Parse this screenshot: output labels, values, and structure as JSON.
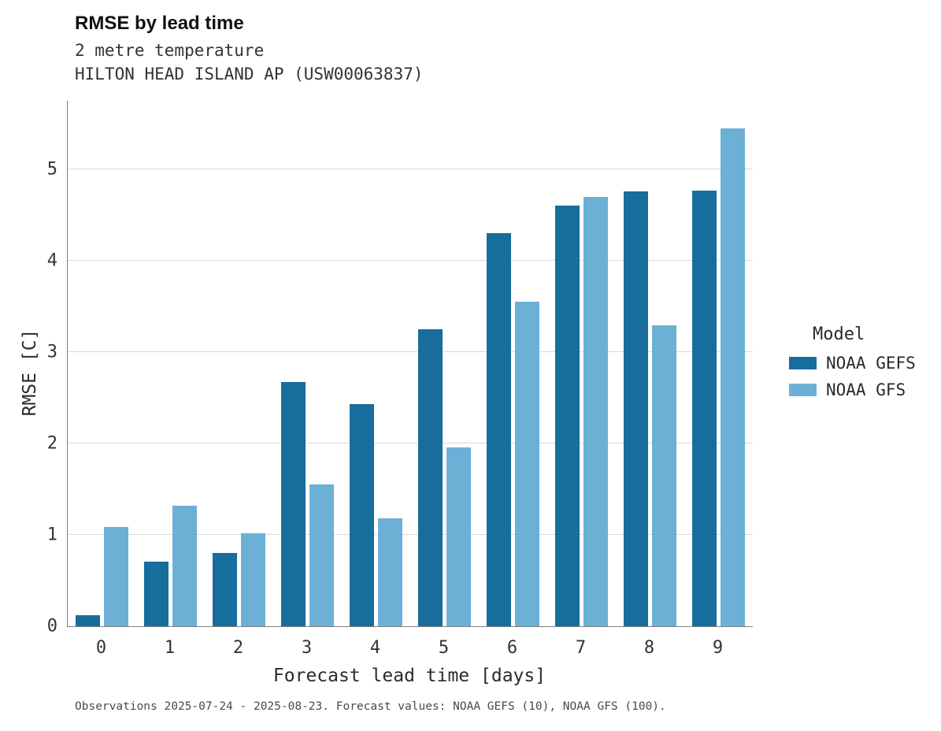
{
  "title": "RMSE by lead time",
  "subtitle_variable": "2 metre temperature",
  "subtitle_station": "HILTON HEAD ISLAND AP (USW00063837)",
  "footer": "Observations 2025-07-24 - 2025-08-23. Forecast values: NOAA GEFS (10), NOAA GFS (100).",
  "legend": {
    "title": "Model",
    "entries": [
      {
        "label": "NOAA GEFS",
        "color": "#176d9b"
      },
      {
        "label": "NOAA GFS",
        "color": "#6cb0d6"
      }
    ]
  },
  "colors": {
    "gefs": "#176d9b",
    "gfs": "#6cb0d6",
    "grid": "#d9d9d9",
    "spine": "#808080"
  },
  "chart_data": {
    "type": "bar",
    "title": "RMSE by lead time",
    "subtitle": "2 metre temperature — HILTON HEAD ISLAND AP (USW00063837)",
    "categories": [
      0,
      1,
      2,
      3,
      4,
      5,
      6,
      7,
      8,
      9
    ],
    "series": [
      {
        "name": "NOAA GEFS",
        "color": "#176d9b",
        "values": [
          0.12,
          0.71,
          0.8,
          2.67,
          2.43,
          3.25,
          4.3,
          4.6,
          4.76,
          4.77
        ]
      },
      {
        "name": "NOAA GFS",
        "color": "#6cb0d6",
        "values": [
          1.09,
          1.32,
          1.02,
          1.55,
          1.18,
          1.96,
          3.55,
          4.7,
          3.29,
          5.45
        ]
      }
    ],
    "xlabel": "Forecast lead time [days]",
    "ylabel": "RMSE [C]",
    "ylim": [
      0,
      5.75
    ],
    "yticks": [
      0,
      1,
      2,
      3,
      4,
      5
    ],
    "grid": true,
    "legend_position": "right"
  }
}
